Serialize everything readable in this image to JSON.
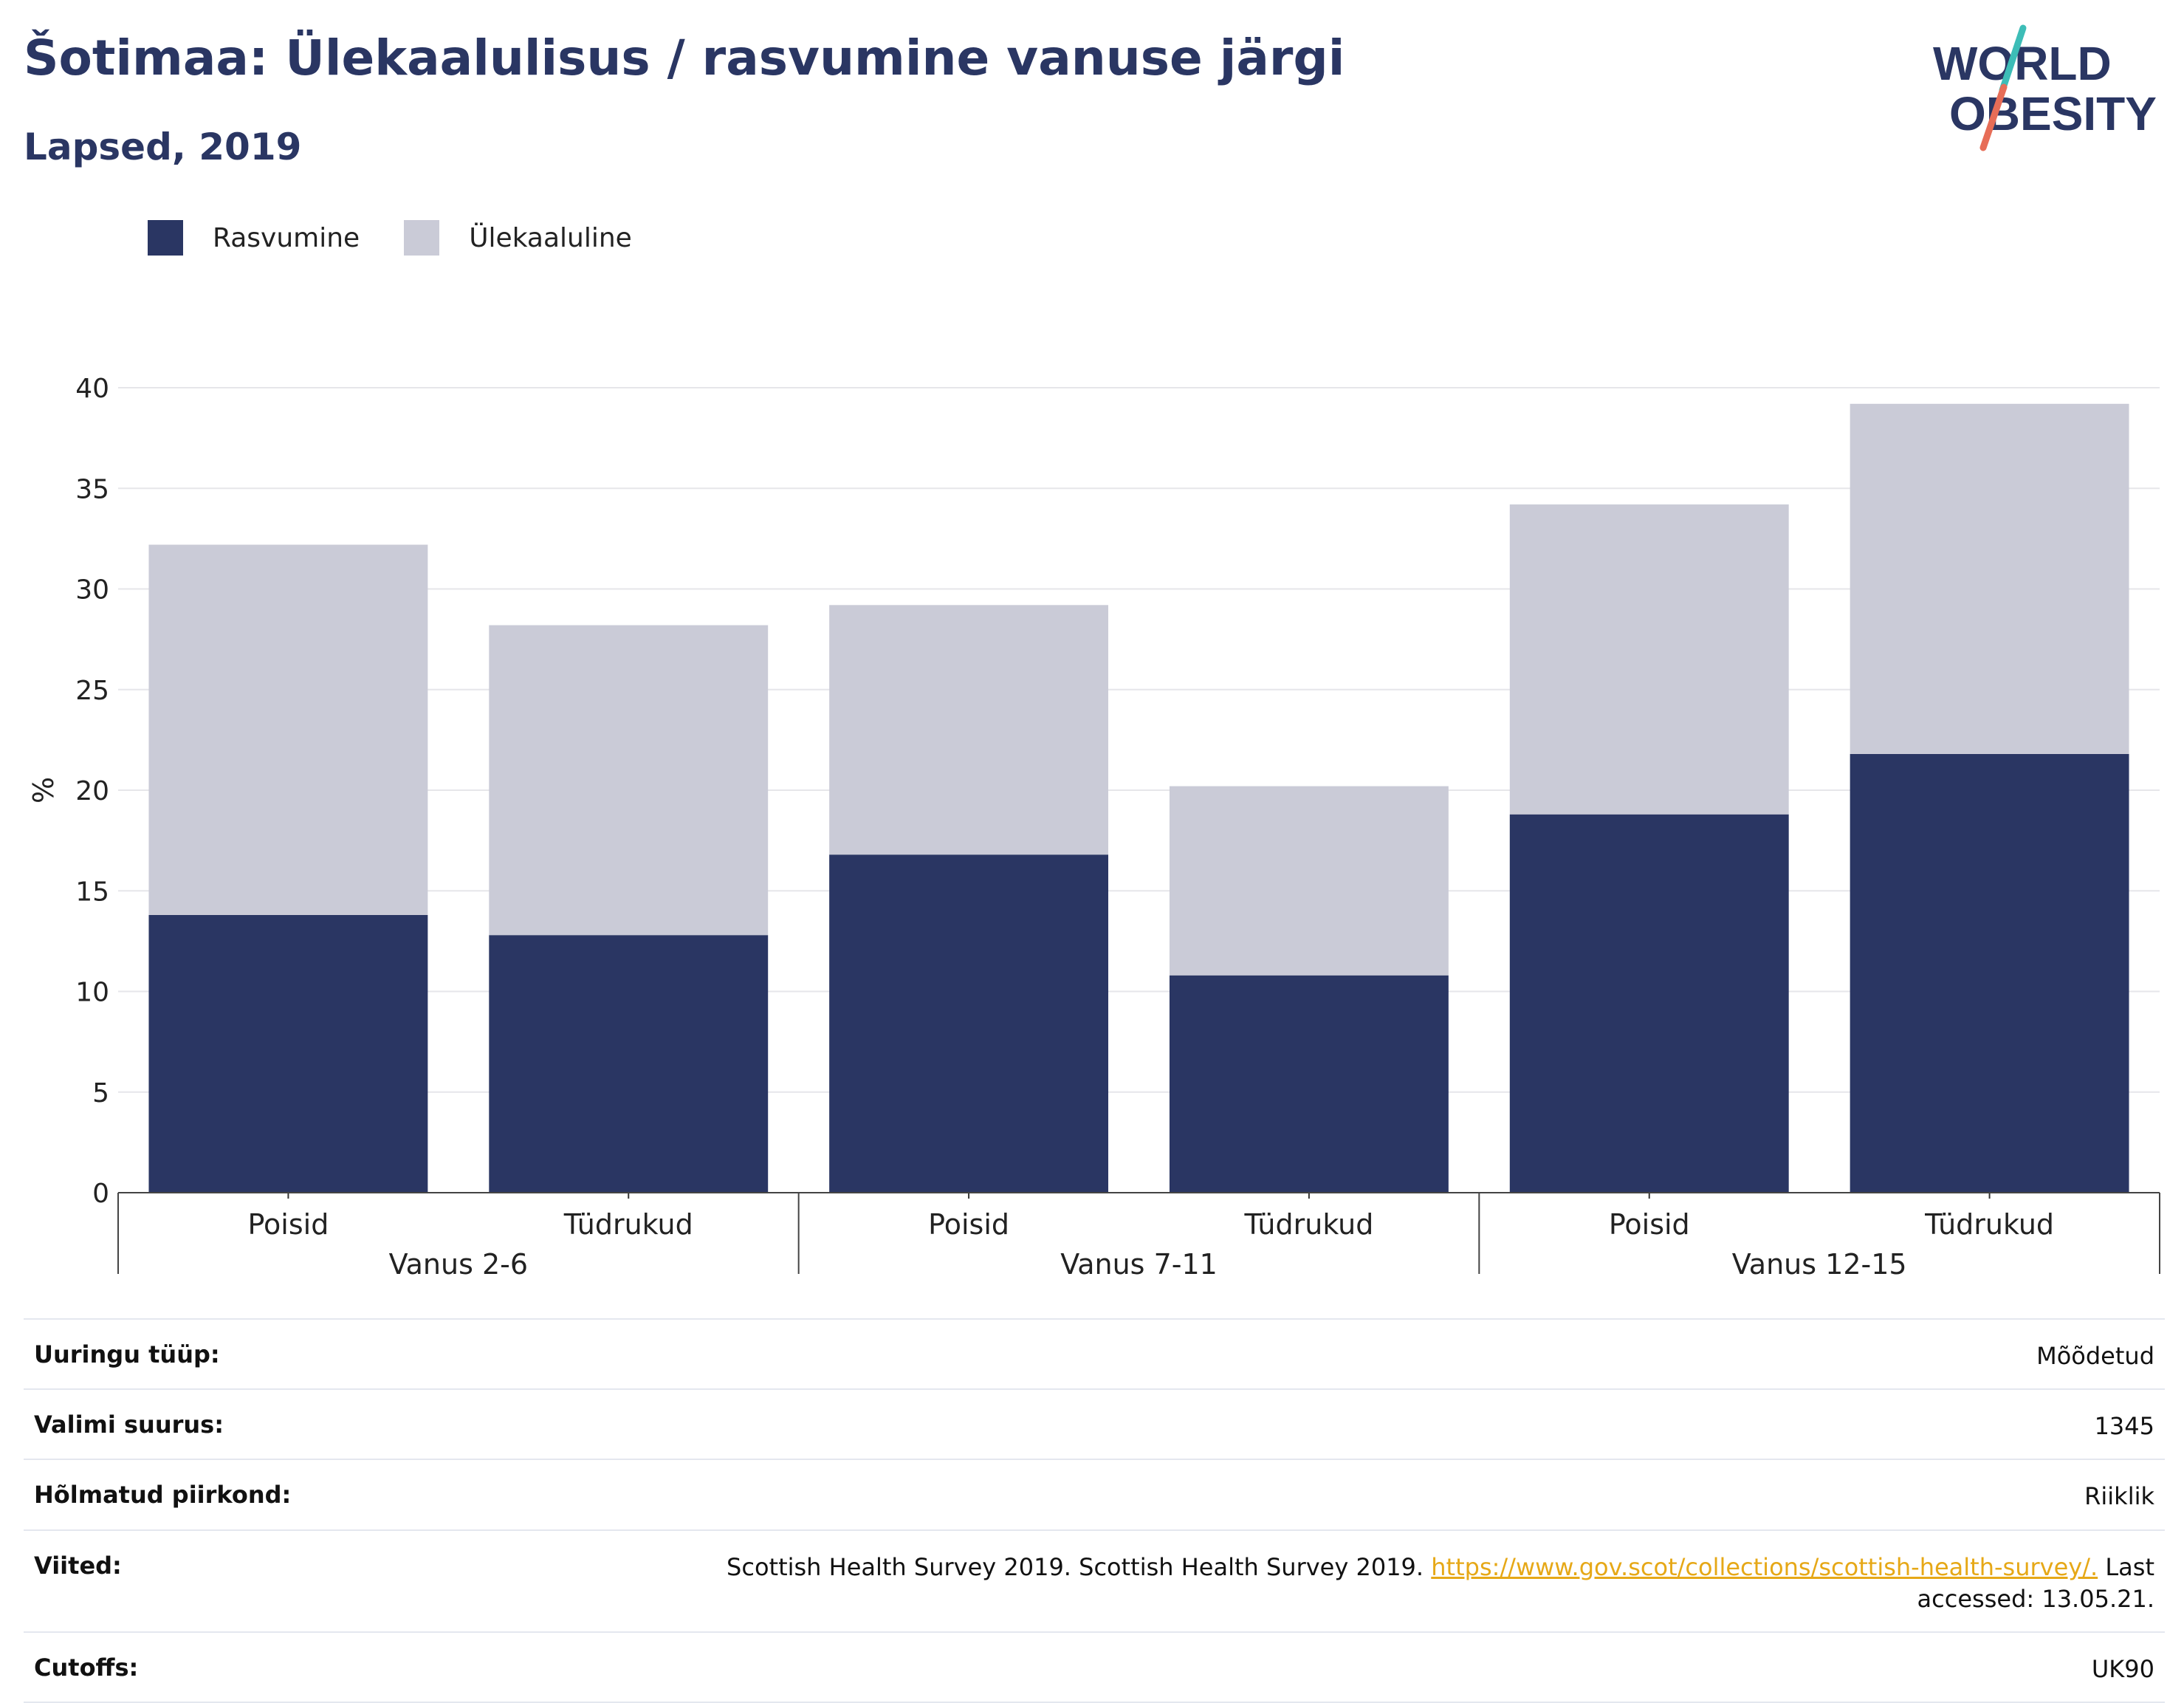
{
  "header": {
    "title": "Šotimaa: Ülekaalulisus / rasvumine vanuse järgi",
    "subtitle": "Lapsed, 2019"
  },
  "logo": {
    "line1": "WORLD",
    "line2": "OBESITY"
  },
  "legend": [
    {
      "label": "Rasvumine",
      "color": "#2a3663"
    },
    {
      "label": "Ülekaaluline",
      "color": "#cacbd7"
    }
  ],
  "chart_data": {
    "type": "bar",
    "stacked": true,
    "ylabel": "%",
    "ylim": [
      0,
      40
    ],
    "yticks": [
      0,
      5,
      10,
      15,
      20,
      25,
      30,
      35,
      40
    ],
    "groups": [
      {
        "label": "Vanus 2-6",
        "categories": [
          "Poisid",
          "Tüdrukud"
        ]
      },
      {
        "label": "Vanus 7-11",
        "categories": [
          "Poisid",
          "Tüdrukud"
        ]
      },
      {
        "label": "Vanus 12-15",
        "categories": [
          "Poisid",
          "Tüdrukud"
        ]
      }
    ],
    "series": [
      {
        "name": "Rasvumine",
        "color": "#2a3663",
        "values": [
          13.8,
          12.8,
          16.8,
          10.8,
          18.8,
          21.8
        ]
      },
      {
        "name": "Ülekaaluline",
        "color": "#cacbd7",
        "values": [
          18.4,
          15.4,
          12.4,
          9.4,
          15.4,
          17.4
        ]
      }
    ],
    "grid": true,
    "legend_position": "top-left"
  },
  "info": [
    {
      "label": "Uuringu tüüp:",
      "value": "Mõõdetud"
    },
    {
      "label": "Valimi suurus:",
      "value": "1345"
    },
    {
      "label": "Hõlmatud piirkond:",
      "value": "Riiklik"
    },
    {
      "label": "Viited:",
      "value_pre": "Scottish Health Survey 2019. Scottish Health Survey 2019. ",
      "link": "https://www.gov.scot/collections/scottish-health-survey/.",
      "value_post": " Last accessed: 13.05.21."
    },
    {
      "label": "Cutoffs:",
      "value": "UK90"
    }
  ]
}
